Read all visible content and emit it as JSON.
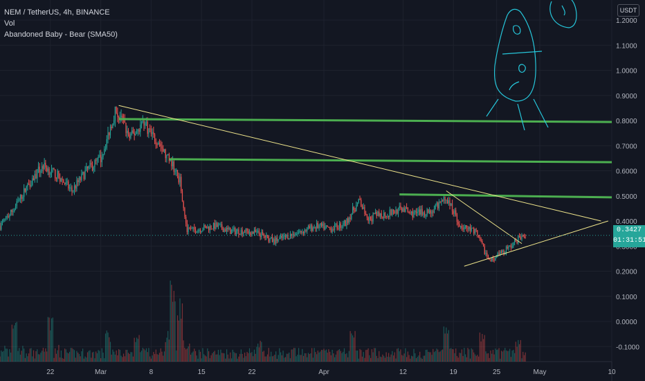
{
  "legend": {
    "symbol_line": "NEM / TetherUS, 4h, BINANCE",
    "volume_label": "Vol",
    "indicator_label": "Abandoned Baby - Bear (SMA50)"
  },
  "currency_label": "USDT",
  "last_price": "0.3427",
  "countdown": "01:31:51",
  "colors": {
    "background": "#131722",
    "up": "#26a69a",
    "down": "#ef5350",
    "trendline": "#f0e68c",
    "level": "#4caf50",
    "drawing": "#26c6da",
    "grid": "#1e222d"
  },
  "chart_data": {
    "type": "candlestick",
    "title": "NEM / TetherUS, 4h, BINANCE",
    "y_ticks": [
      "1.2000",
      "1.1000",
      "1.0000",
      "0.9000",
      "0.8000",
      "0.7000",
      "0.6000",
      "0.5000",
      "0.4000",
      "0.3000",
      "0.2000",
      "0.1000",
      "0.0000",
      "-0.1000"
    ],
    "y_tick_values": [
      1.2,
      1.1,
      1.0,
      0.9,
      0.8,
      0.7,
      0.6,
      0.5,
      0.4,
      0.3,
      0.2,
      0.1,
      0.0,
      -0.1
    ],
    "ylim": [
      -0.16,
      1.28
    ],
    "x_ticks": [
      "22",
      "Mar",
      "8",
      "15",
      "22",
      "Apr",
      "12",
      "19",
      "25",
      "May",
      "10"
    ],
    "x_tick_days": [
      -7,
      0,
      7,
      14,
      21,
      31,
      42,
      49,
      55,
      61,
      71
    ],
    "x_range_days": [
      -14,
      71
    ],
    "price_path_days": [
      -14,
      -12,
      -10,
      -8,
      -6,
      -4,
      -2,
      0,
      1,
      2,
      3,
      4,
      5,
      6,
      7,
      8,
      9,
      10,
      11,
      12,
      14,
      16,
      18,
      20,
      22,
      24,
      26,
      28,
      30,
      32,
      34,
      35,
      36,
      37,
      38,
      40,
      41,
      42,
      43,
      44,
      46,
      48,
      49,
      50,
      52,
      53,
      54,
      55,
      56,
      57,
      58,
      59
    ],
    "price_path_values": [
      0.38,
      0.45,
      0.55,
      0.62,
      0.58,
      0.52,
      0.6,
      0.65,
      0.74,
      0.84,
      0.8,
      0.73,
      0.76,
      0.8,
      0.74,
      0.72,
      0.66,
      0.62,
      0.56,
      0.36,
      0.37,
      0.38,
      0.36,
      0.36,
      0.35,
      0.32,
      0.34,
      0.36,
      0.38,
      0.37,
      0.39,
      0.44,
      0.48,
      0.4,
      0.42,
      0.43,
      0.44,
      0.45,
      0.43,
      0.43,
      0.44,
      0.49,
      0.44,
      0.38,
      0.36,
      0.3,
      0.24,
      0.26,
      0.28,
      0.3,
      0.33,
      0.34
    ],
    "volume_spike_days": [
      -12,
      -7,
      1,
      5,
      10,
      11,
      22,
      35,
      48,
      53,
      58
    ],
    "volume_spike_values": [
      0.55,
      0.55,
      0.35,
      0.35,
      1.0,
      0.75,
      0.25,
      0.35,
      0.4,
      0.35,
      0.25
    ],
    "horizontal_levels": [
      {
        "value": 0.8,
        "from_day": 2.5
      },
      {
        "value": 0.64,
        "from_day": 9.5
      },
      {
        "value": 0.5,
        "from_day": 41.5
      }
    ],
    "trendlines": [
      {
        "from": [
          2.5,
          0.86
        ],
        "to": [
          69.5,
          0.4
        ]
      },
      {
        "from": [
          48,
          0.52
        ],
        "to": [
          58.5,
          0.31
        ]
      },
      {
        "from": [
          50.5,
          0.22
        ],
        "to": [
          70.5,
          0.4
        ]
      }
    ],
    "last_value": 0.3427
  }
}
